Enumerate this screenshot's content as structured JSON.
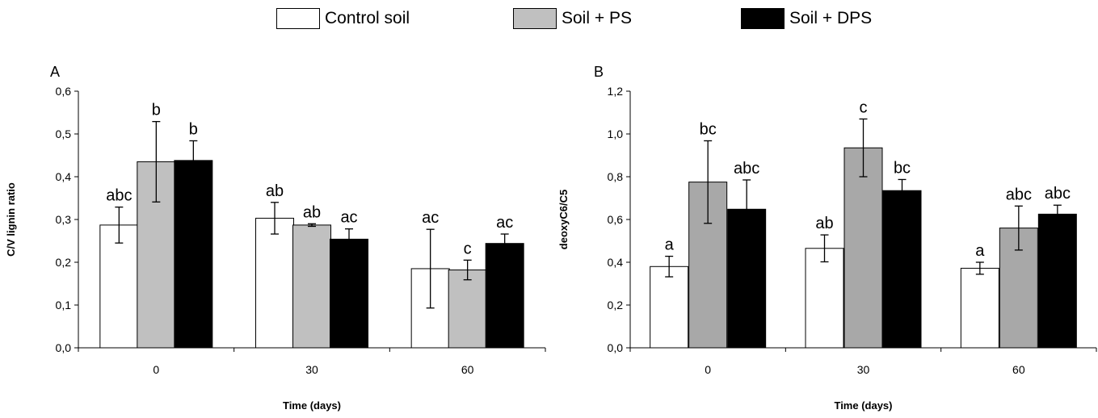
{
  "legend": [
    {
      "name": "Control soil",
      "color": "#ffffff"
    },
    {
      "name": "Soil + PS",
      "color": "#c0c0c0"
    },
    {
      "name": "Soil + DPS",
      "color": "#000000"
    }
  ],
  "chart_data": [
    {
      "type": "bar",
      "panel": "A",
      "xlabel": "Time (days)",
      "ylabel": "C/V lignin ratio",
      "categories": [
        "0",
        "30",
        "60"
      ],
      "ylim": [
        0,
        0.6
      ],
      "yticks": [
        "0,0",
        "0,1",
        "0,2",
        "0,3",
        "0,4",
        "0,5",
        "0,6"
      ],
      "yticks_values": [
        0,
        0.1,
        0.2,
        0.3,
        0.4,
        0.5,
        0.6
      ],
      "grid": false,
      "legend_position": "top",
      "series": [
        {
          "name": "Control soil",
          "color": "#ffffff",
          "values": [
            0.287,
            0.303,
            0.185
          ],
          "errors": [
            0.042,
            0.037,
            0.092
          ],
          "labels": [
            "abc",
            "ab",
            "ac"
          ]
        },
        {
          "name": "Soil + PS",
          "color": "#c0c0c0",
          "values": [
            0.435,
            0.287,
            0.182
          ],
          "errors": [
            0.094,
            0.003,
            0.023
          ],
          "labels": [
            "b",
            "ab",
            "c"
          ]
        },
        {
          "name": "Soil + DPS",
          "color": "#000000",
          "values": [
            0.438,
            0.254,
            0.244
          ],
          "errors": [
            0.046,
            0.024,
            0.022
          ],
          "labels": [
            "b",
            "ac",
            "ac"
          ]
        }
      ]
    },
    {
      "type": "bar",
      "panel": "B",
      "xlabel": "Time (days)",
      "ylabel": "deoxyC6/C5",
      "categories": [
        "0",
        "30",
        "60"
      ],
      "ylim": [
        0,
        1.2
      ],
      "yticks": [
        "0,0",
        "0,2",
        "0,4",
        "0,6",
        "0,8",
        "1,0",
        "1,2"
      ],
      "yticks_values": [
        0,
        0.2,
        0.4,
        0.6,
        0.8,
        1.0,
        1.2
      ],
      "grid": false,
      "legend_position": "top",
      "series": [
        {
          "name": "Control soil",
          "color": "#ffffff",
          "values": [
            0.38,
            0.465,
            0.372
          ],
          "errors": [
            0.048,
            0.063,
            0.028
          ],
          "labels": [
            "a",
            "ab",
            "a"
          ]
        },
        {
          "name": "Soil + PS",
          "color": "#a8a8a8",
          "values": [
            0.775,
            0.935,
            0.56
          ],
          "errors": [
            0.193,
            0.135,
            0.103
          ],
          "labels": [
            "bc",
            "c",
            "abc"
          ]
        },
        {
          "name": "Soil + DPS",
          "color": "#000000",
          "values": [
            0.648,
            0.735,
            0.625
          ],
          "errors": [
            0.137,
            0.052,
            0.042
          ],
          "labels": [
            "abc",
            "bc",
            "abc"
          ]
        }
      ]
    }
  ]
}
